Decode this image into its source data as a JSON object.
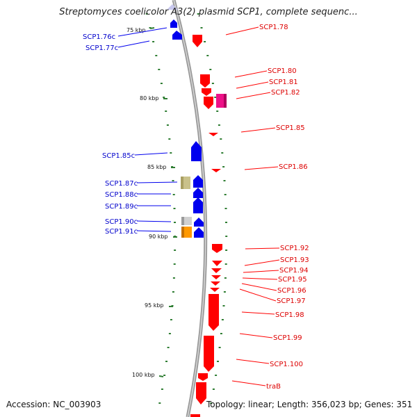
{
  "header": {
    "title": "Streptomyces coelicolor A3(2) plasmid SCP1, complete sequenc..."
  },
  "footer": {
    "accession": "Accession: NC_003903",
    "summary": "Topology: linear; Length: 356,023 bp; Genes: 351"
  },
  "colors": {
    "forward": "#ff0000",
    "reverse": "#0000ee",
    "ticks": "#2e7d32",
    "backbone": "#999999"
  },
  "scale": {
    "ticks": [
      {
        "label": "75 kbp"
      },
      {
        "label": "80 kbp"
      },
      {
        "label": "85 kbp"
      },
      {
        "label": "90 kbp"
      },
      {
        "label": "95 kbp"
      },
      {
        "label": "100 kbp"
      }
    ]
  },
  "genes": {
    "forward": [
      {
        "label": "SCP1.78"
      },
      {
        "label": "SCP1.80"
      },
      {
        "label": "SCP1.81"
      },
      {
        "label": "SCP1.82"
      },
      {
        "label": "SCP1.85"
      },
      {
        "label": "SCP1.86"
      },
      {
        "label": "SCP1.92"
      },
      {
        "label": "SCP1.93"
      },
      {
        "label": "SCP1.94"
      },
      {
        "label": "SCP1.95"
      },
      {
        "label": "SCP1.96"
      },
      {
        "label": "SCP1.97"
      },
      {
        "label": "SCP1.98"
      },
      {
        "label": "SCP1.99"
      },
      {
        "label": "SCP1.100"
      },
      {
        "label": "traB"
      }
    ],
    "reverse": [
      {
        "label": "SCP1.76c"
      },
      {
        "label": "SCP1.77c"
      },
      {
        "label": "SCP1.85c"
      },
      {
        "label": "SCP1.87c"
      },
      {
        "label": "SCP1.88c"
      },
      {
        "label": "SCP1.89c"
      },
      {
        "label": "SCP1.90c"
      },
      {
        "label": "SCP1.91c"
      }
    ]
  }
}
